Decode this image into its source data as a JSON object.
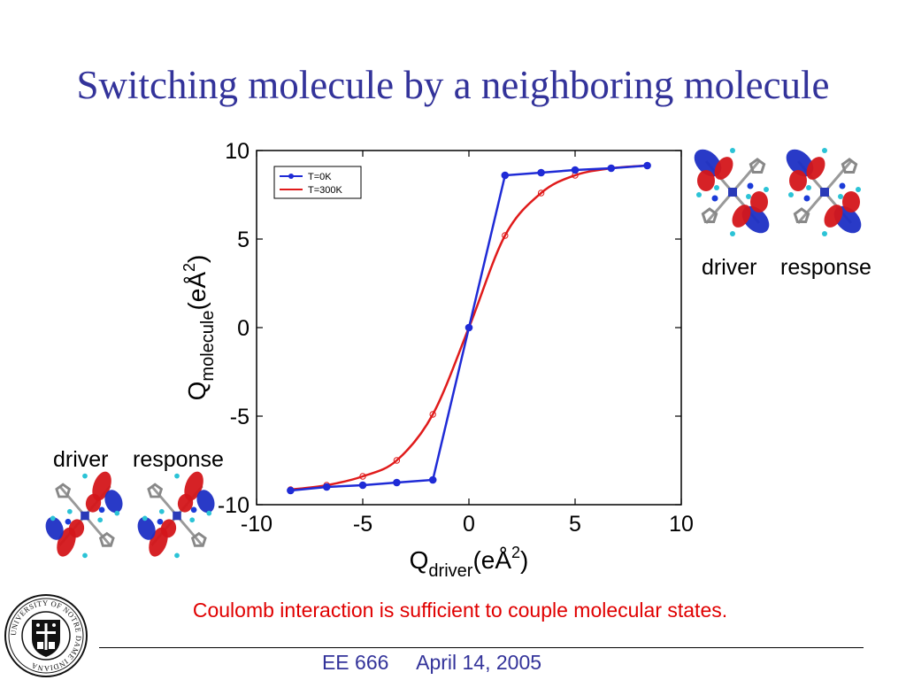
{
  "slide": {
    "title": "Switching molecule by a neighboring molecule",
    "caption": "Coulomb interaction is sufficient to couple molecular states.",
    "footer": "EE 666     April 14, 2005"
  },
  "molecule_groups": [
    {
      "driver_label": "driver",
      "response_label": "response"
    },
    {
      "driver_label": "driver",
      "response_label": "response"
    }
  ],
  "seal": {
    "text": "UNIVERSITY OF NOTRE DAME INDIANA"
  },
  "colors": {
    "title": "#33339a",
    "caption": "#e00000",
    "footer": "#33339a",
    "series_0K": "#1f2bd6",
    "series_300K": "#e01b1b",
    "lobe_red": "#d4161a",
    "lobe_blue": "#1d2fc4"
  },
  "chart_data": {
    "type": "line",
    "xlabel_main": "Q",
    "xlabel_sub": "driver",
    "xlabel_unit": "(eÅ",
    "xlabel_sup": "2",
    "xlabel_close": ")",
    "ylabel_main": "Q",
    "ylabel_sub": "molecule",
    "ylabel_unit": "(eÅ",
    "ylabel_sup": "2",
    "ylabel_close": ")",
    "xlim": [
      -10,
      10
    ],
    "ylim": [
      -10,
      10
    ],
    "xticks": [
      -10,
      -5,
      0,
      5,
      10
    ],
    "yticks": [
      -10,
      -5,
      0,
      5,
      10
    ],
    "xtick_labels": [
      "-10",
      "-5",
      "0",
      "5",
      "10"
    ],
    "ytick_labels": [
      "-10",
      "-5",
      "0",
      "5",
      "10"
    ],
    "grid": false,
    "legend_position": "top-left",
    "series": [
      {
        "name": "T=0K",
        "color": "#1f2bd6",
        "marker": "filled-circle",
        "x": [
          -8.4,
          -6.7,
          -5.0,
          -3.4,
          -1.7,
          0,
          1.7,
          3.4,
          5.0,
          6.7,
          8.4
        ],
        "y": [
          -9.2,
          -9.0,
          -8.9,
          -8.75,
          -8.6,
          0,
          8.6,
          8.75,
          8.9,
          9.0,
          9.15
        ]
      },
      {
        "name": "T=300K",
        "color": "#e01b1b",
        "marker": "open-circle",
        "x": [
          -8.4,
          -6.7,
          -5.0,
          -3.4,
          -1.7,
          0,
          1.7,
          3.4,
          5.0,
          6.7,
          8.4
        ],
        "y": [
          -9.15,
          -8.9,
          -8.4,
          -7.5,
          -4.9,
          0,
          5.2,
          7.6,
          8.6,
          9.0,
          9.15
        ]
      }
    ]
  }
}
